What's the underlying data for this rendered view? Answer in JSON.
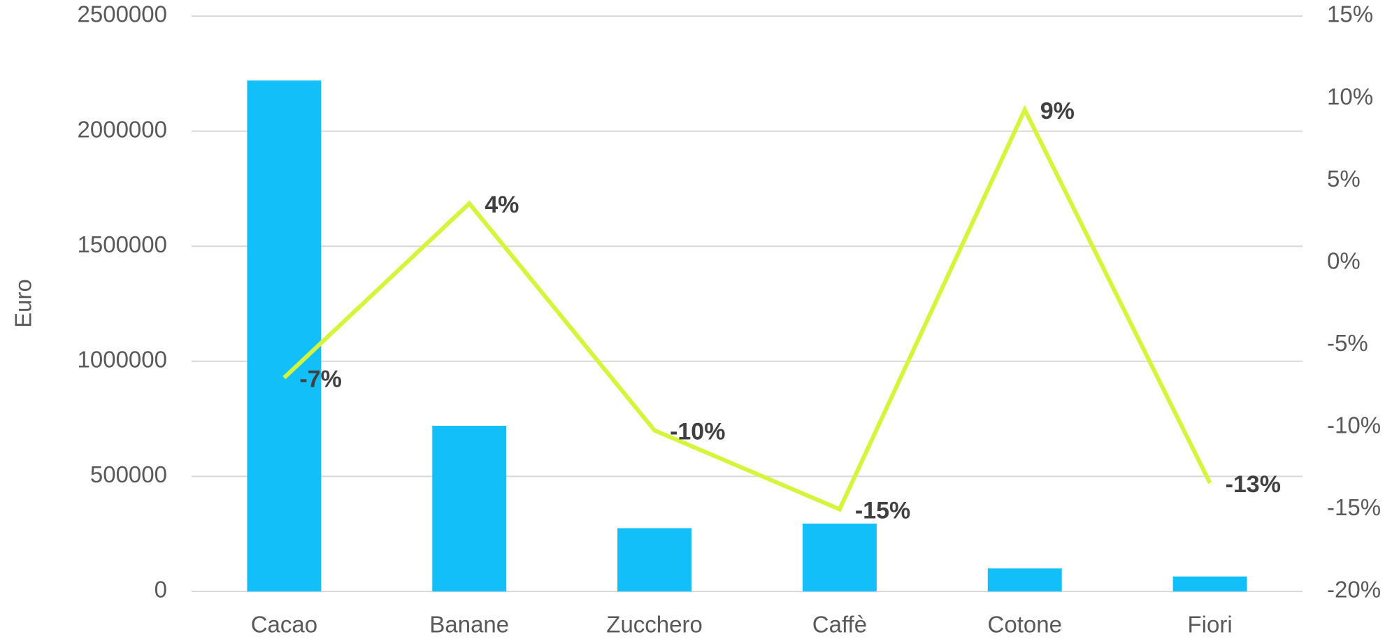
{
  "chart_data": {
    "type": "bar",
    "y_label": "Euro",
    "categories": [
      "Cacao",
      "Banane",
      "Zucchero",
      "Caffè",
      "Cotone",
      "Fiori"
    ],
    "series": [
      {
        "type": "bar",
        "color": "#12bff9",
        "values": [
          2220000,
          720000,
          275000,
          295000,
          100000,
          65000
        ]
      },
      {
        "type": "line",
        "axis": "y2",
        "color": "#d4f53c",
        "values": [
          -7,
          3.6,
          -10.2,
          -15,
          9.3,
          -13.4
        ],
        "value_labels": [
          "-7%",
          "4%",
          "-10%",
          "-15%",
          "9%",
          "-13%"
        ]
      }
    ],
    "ylim": [
      0,
      2500000
    ],
    "yticks": [
      0,
      500000,
      1000000,
      1500000,
      2000000,
      2500000
    ],
    "y2lim": [
      -20,
      15
    ],
    "y2ticks": [
      {
        "value": -20,
        "label": "-20%"
      },
      {
        "value": -15,
        "label": "-15%"
      },
      {
        "value": -10,
        "label": "-10%"
      },
      {
        "value": -5,
        "label": "-5%"
      },
      {
        "value": 0,
        "label": "0%"
      },
      {
        "value": 5,
        "label": "5%"
      },
      {
        "value": 10,
        "label": "10%"
      },
      {
        "value": 15,
        "label": "15%"
      }
    ],
    "grid": true
  }
}
